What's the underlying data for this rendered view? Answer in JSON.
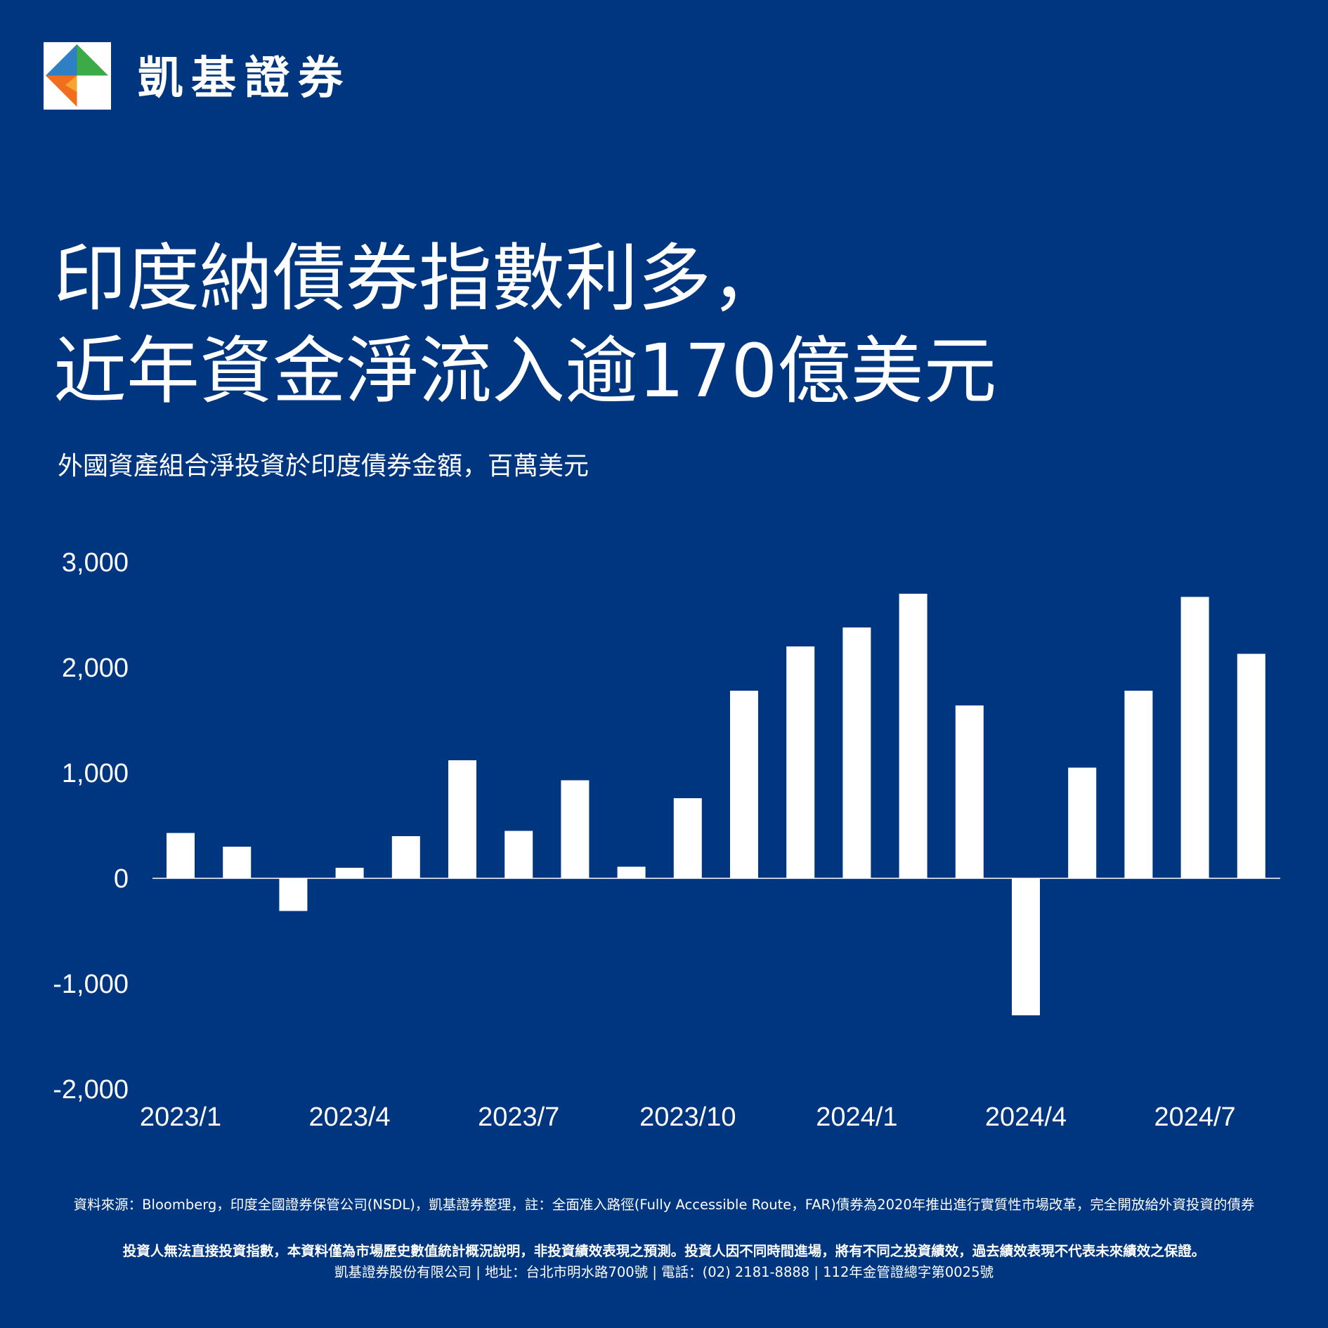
{
  "brand": {
    "name": "凱基證券",
    "logo_icon": "kgi-diamond-logo"
  },
  "headline": {
    "line1": "印度納債券指數利多，",
    "line2": "近年資金淨流入逾170億美元"
  },
  "subtitle": "外國資產組合淨投資於印度債券金額，百萬美元",
  "chart_data": {
    "type": "bar",
    "title": "",
    "xlabel": "",
    "ylabel": "",
    "ylim": [
      -2000,
      3000
    ],
    "yticks": [
      3000,
      2000,
      1000,
      0,
      -1000,
      -2000
    ],
    "ytick_labels": [
      "3,000",
      "2,000",
      "1,000",
      "0",
      "-1,000",
      "-2,000"
    ],
    "categories": [
      "2023/1",
      "2023/2",
      "2023/3",
      "2023/4",
      "2023/5",
      "2023/6",
      "2023/7",
      "2023/8",
      "2023/9",
      "2023/10",
      "2023/11",
      "2023/12",
      "2024/1",
      "2024/2",
      "2024/3",
      "2024/4",
      "2024/5",
      "2024/6",
      "2024/7",
      "2024/8"
    ],
    "values": [
      430,
      300,
      -310,
      100,
      400,
      1120,
      450,
      930,
      110,
      760,
      1780,
      2200,
      2380,
      2700,
      1640,
      -1300,
      1050,
      1780,
      2670,
      2130
    ],
    "xtick_labels": [
      "2023/1",
      "2023/4",
      "2023/7",
      "2023/10",
      "2024/1",
      "2024/4",
      "2024/7"
    ],
    "grid": false,
    "bar_color": "#FFFFFF"
  },
  "footer": {
    "source": "資料來源：Bloomberg，印度全國證券保管公司(NSDL)，凱基證券整理，註：全面准入路徑(Fully  Accessible  Route，FAR)債券為2020年推出進行實質性市場改革，完全開放給外資投資的債券",
    "disclaimer": "投資人無法直接投資指數，本資料僅為市場歷史數值統計概況說明，非投資績效表現之預測。投資人因不同時間進場，將有不同之投資績效，過去績效表現不代表未來績效之保證。",
    "company": "凱基證券股份有限公司 | 地址：台北市明水路700號 | 電話：(02) 2181-8888 | 112年金管證總字第0025號"
  }
}
